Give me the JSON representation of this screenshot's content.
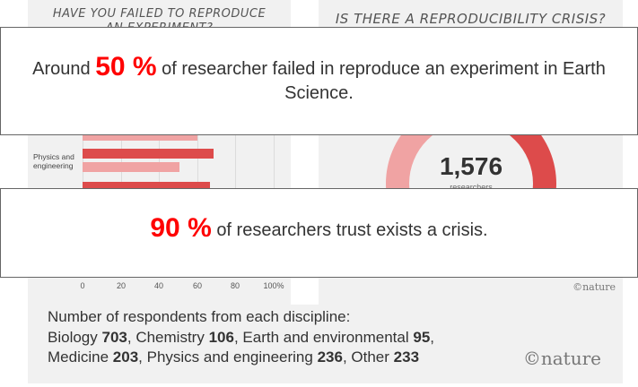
{
  "left_panel": {
    "title_line1": "HAVE YOU FAILED TO REPRODUCE",
    "title_line2": "AN EXPERIMENT?",
    "category_label": "Physics and engineering",
    "ticks": [
      "0",
      "20",
      "40",
      "60",
      "80",
      "100%"
    ]
  },
  "right_panel": {
    "title": "IS THERE A REPRODUCIBILITY CRISIS?",
    "respondents": "1,576",
    "respondents_sub": "researchers",
    "logo": "©nature"
  },
  "bottom_panel": {
    "line1": "Number of respondents from each discipline:",
    "disciplines": [
      {
        "name": "Biology",
        "count": "703"
      },
      {
        "name": "Chemistry",
        "count": "106"
      },
      {
        "name": "Earth and environmental",
        "count": "95"
      },
      {
        "name": "Medicine",
        "count": "203"
      },
      {
        "name": "Physics and engineering",
        "count": "236"
      },
      {
        "name": "Other",
        "count": "233"
      }
    ],
    "logo": "©nature"
  },
  "overlay_1": {
    "prefix": "Around",
    "highlight": "50 %",
    "text": "of researcher failed in reproduce an experiment in Earth Science."
  },
  "overlay_2": {
    "highlight": "90 %",
    "text": "of researchers trust exists a crisis."
  },
  "colors": {
    "highlight": "#ff0000",
    "bar_dark": "#dd4b4b",
    "bar_light": "#f0a3a3"
  }
}
